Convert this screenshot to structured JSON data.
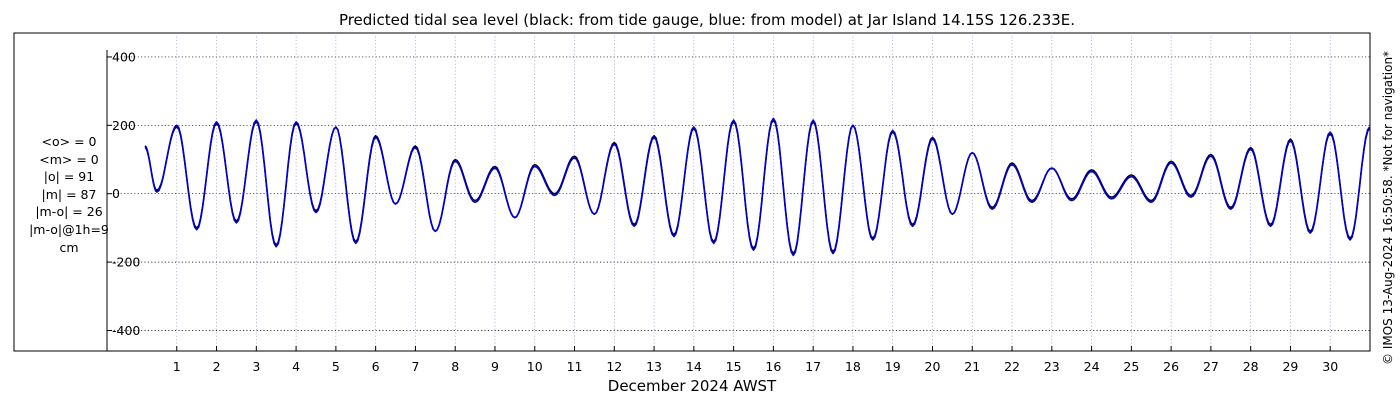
{
  "chart_data": {
    "type": "line",
    "title": "Predicted tidal sea level (black: from tide gauge, blue: from model) at Jar Island 14.15S 126.233E.",
    "xlabel": "December 2024 AWST",
    "ylabel": "",
    "ylim": [
      -460,
      470
    ],
    "xlim": [
      0,
      31
    ],
    "yticks": [
      -400,
      -200,
      0,
      200,
      400
    ],
    "ytick_labels": [
      "-400",
      "-200",
      "0",
      "200",
      "400"
    ],
    "xticks": [
      1,
      2,
      3,
      4,
      5,
      6,
      7,
      8,
      9,
      10,
      11,
      12,
      13,
      14,
      15,
      16,
      17,
      18,
      19,
      20,
      21,
      22,
      23,
      24,
      25,
      26,
      27,
      28,
      29,
      30
    ],
    "xtick_labels": [
      "1",
      "2",
      "3",
      "4",
      "5",
      "6",
      "7",
      "8",
      "9",
      "10",
      "11",
      "12",
      "13",
      "14",
      "15",
      "16",
      "17",
      "18",
      "19",
      "20",
      "21",
      "22",
      "23",
      "24",
      "25",
      "26",
      "27",
      "28",
      "29",
      "30"
    ],
    "grid": true,
    "series": [
      {
        "color": "#000000",
        "x": [
          0.2,
          0.5,
          1.0,
          1.5,
          2.0,
          2.5,
          3.0,
          3.5,
          4.0,
          4.5,
          5.0,
          5.5,
          6.0,
          6.5,
          7.0,
          7.5,
          8.0,
          8.5,
          9.0,
          9.5,
          10.0,
          10.5,
          11.0,
          11.5,
          12.0,
          12.5,
          13.0,
          13.5,
          14.0,
          14.5,
          15.0,
          15.5,
          16.0,
          16.5,
          17.0,
          17.5,
          18.0,
          18.5,
          19.0,
          19.5,
          20.0,
          20.5,
          21.0,
          21.5,
          22.0,
          22.5,
          23.0,
          23.5,
          24.0,
          24.5,
          25.0,
          25.5,
          26.0,
          26.5,
          27.0,
          27.5,
          28.0,
          28.5,
          29.0,
          29.5,
          30.0,
          30.5,
          30.99
        ],
        "y": [
          135,
          10,
          195,
          -100,
          205,
          -80,
          210,
          -150,
          205,
          -50,
          195,
          -140,
          170,
          -30,
          140,
          -110,
          100,
          -20,
          80,
          -70,
          85,
          0,
          110,
          -60,
          150,
          -90,
          170,
          -120,
          190,
          -140,
          210,
          -160,
          215,
          -175,
          210,
          -170,
          200,
          -130,
          180,
          -90,
          165,
          -60,
          120,
          -40,
          90,
          -20,
          75,
          -15,
          70,
          -10,
          55,
          -20,
          95,
          -5,
          115,
          -40,
          135,
          -90,
          160,
          -110,
          175,
          -130,
          190
        ]
      },
      {
        "color": "#0000cc",
        "x": [
          0.2,
          0.5,
          1.0,
          1.5,
          2.0,
          2.5,
          3.0,
          3.5,
          4.0,
          4.5,
          5.0,
          5.5,
          6.0,
          6.5,
          7.0,
          7.5,
          8.0,
          8.5,
          9.0,
          9.5,
          10.0,
          10.5,
          11.0,
          11.5,
          12.0,
          12.5,
          13.0,
          13.5,
          14.0,
          14.5,
          15.0,
          15.5,
          16.0,
          16.5,
          17.0,
          17.5,
          18.0,
          18.5,
          19.0,
          19.5,
          20.0,
          20.5,
          21.0,
          21.5,
          22.0,
          22.5,
          23.0,
          23.5,
          24.0,
          24.5,
          25.0,
          25.5,
          26.0,
          26.5,
          27.0,
          27.5,
          28.0,
          28.5,
          29.0,
          29.5,
          30.0,
          30.5,
          30.99
        ],
        "y": [
          140,
          5,
          200,
          -105,
          210,
          -85,
          215,
          -155,
          210,
          -55,
          195,
          -145,
          165,
          -30,
          135,
          -110,
          95,
          -25,
          75,
          -70,
          80,
          -5,
          105,
          -60,
          145,
          -95,
          165,
          -125,
          195,
          -145,
          215,
          -165,
          220,
          -180,
          215,
          -175,
          200,
          -135,
          185,
          -95,
          160,
          -60,
          120,
          -45,
          85,
          -25,
          75,
          -20,
          65,
          -15,
          50,
          -25,
          90,
          -10,
          110,
          -45,
          130,
          -95,
          155,
          -115,
          180,
          -135,
          195
        ]
      }
    ]
  },
  "side_stats": [
    "<o> = 0",
    "<m> = 0",
    "|o| = 91",
    "|m| = 87",
    "|m-o| = 26",
    "|m-o|@1h=9",
    "cm"
  ],
  "credit": "© IMOS 13-Aug-2024 16:50:58. *Not for navigation*"
}
